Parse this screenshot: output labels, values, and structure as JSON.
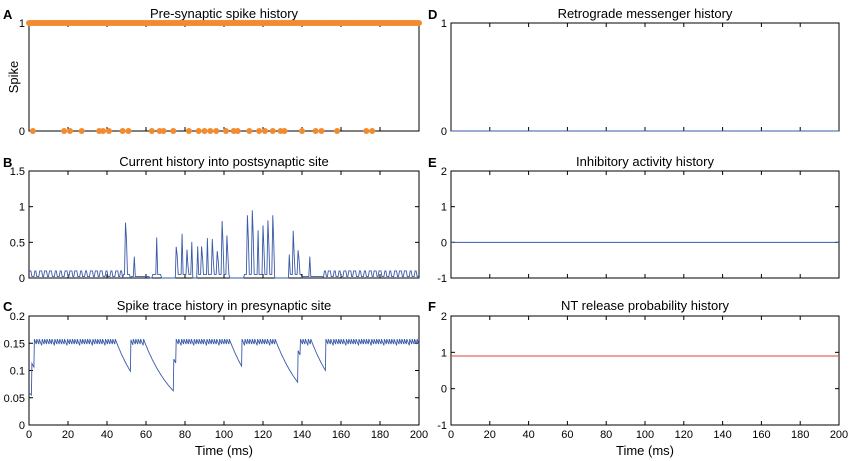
{
  "chart_data": [
    {
      "panel": "A",
      "type": "scatter",
      "title": "Pre-synaptic spike history",
      "xlabel": "",
      "ylabel": "Spike",
      "xlim": [
        0,
        200
      ],
      "ylim": [
        0,
        1
      ],
      "yticks": [
        0,
        1
      ],
      "xticks_visible": false,
      "marker_color": "#f28a2e",
      "series": [
        {
          "name": "spike",
          "x_range_dense": [
            0,
            200
          ],
          "y": 1
        },
        {
          "name": "no-spike",
          "x": [
            2,
            18,
            21,
            27,
            36,
            38,
            41,
            48,
            51,
            63,
            67,
            69,
            74,
            82,
            87,
            90,
            93,
            96,
            101,
            105,
            107,
            113,
            118,
            121,
            125,
            129,
            131,
            140,
            147,
            150,
            158,
            173,
            176
          ],
          "y": 0
        }
      ]
    },
    {
      "panel": "B",
      "type": "line",
      "title": "Current history into postsynaptic site",
      "xlim": [
        0,
        200
      ],
      "ylim": [
        0,
        1.5
      ],
      "yticks": [
        0,
        0.5,
        1,
        1.5
      ],
      "xticks_visible": false,
      "line_color": "#3a5ba9"
    },
    {
      "panel": "C",
      "type": "line",
      "title": "Spike trace history in presynaptic site",
      "xlabel": "Time (ms)",
      "xlim": [
        0,
        200
      ],
      "ylim": [
        0,
        0.2
      ],
      "xticks": [
        0,
        20,
        40,
        60,
        80,
        100,
        120,
        140,
        160,
        180,
        200
      ],
      "yticks": [
        0,
        0.05,
        0.1,
        0.15,
        0.2
      ],
      "line_color": "#3a5ba9"
    },
    {
      "panel": "D",
      "type": "line",
      "title": "Retrograde messenger history",
      "xlim": [
        0,
        200
      ],
      "ylim": [
        0,
        1
      ],
      "yticks": [
        0,
        1
      ],
      "xticks_visible": false,
      "series": [
        {
          "name": "messenger",
          "x": [
            0,
            200
          ],
          "values": [
            0,
            0
          ]
        }
      ],
      "line_color": "#3a5ba9"
    },
    {
      "panel": "E",
      "type": "line",
      "title": "Inhibitory activity history",
      "xlim": [
        0,
        200
      ],
      "ylim": [
        -1,
        2
      ],
      "yticks": [
        -1,
        0,
        1,
        2
      ],
      "xticks_visible": false,
      "series": [
        {
          "name": "inhibitory",
          "x": [
            0,
            200
          ],
          "values": [
            0,
            0
          ]
        }
      ],
      "line_color": "#3a5ba9"
    },
    {
      "panel": "F",
      "type": "line",
      "title": "NT release probability history",
      "xlabel": "Time (ms)",
      "xlim": [
        0,
        200
      ],
      "ylim": [
        -1,
        2
      ],
      "xticks": [
        0,
        20,
        40,
        60,
        80,
        100,
        120,
        140,
        160,
        180,
        200
      ],
      "yticks": [
        -1,
        0,
        1,
        2
      ],
      "series": [
        {
          "name": "release-probability",
          "x": [
            0,
            200
          ],
          "values": [
            0.9,
            0.9
          ]
        }
      ],
      "line_color": "#e0403a"
    }
  ]
}
